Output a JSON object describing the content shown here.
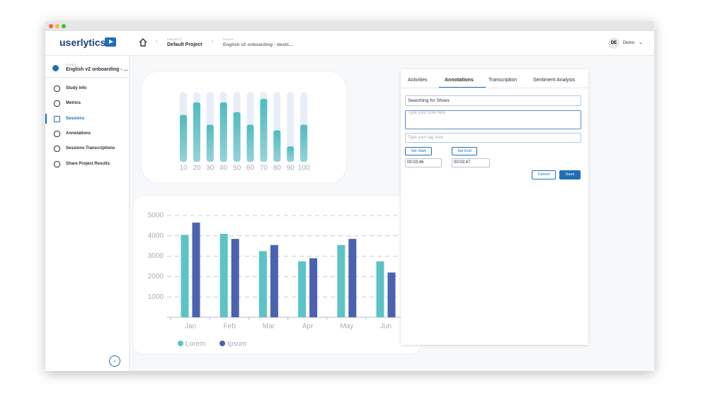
{
  "header": {
    "logo": "userlytics",
    "project_label": "PROJECT",
    "project": "Default Project",
    "study_label": "STUDY",
    "study": "English v2 onboarding - deskt...",
    "avatar": "DE",
    "user": "Demo"
  },
  "sidebar": {
    "study_label": "STUDY",
    "study": "English v2 onboarding - ...",
    "items": [
      "Study Info",
      "Metrics",
      "Sessions",
      "Annotations",
      "Sessions Transcriptions",
      "Share Project Results"
    ],
    "active": 2
  },
  "annotation_panel": {
    "tabs": [
      "Activities",
      "Annotations",
      "Transcription",
      "Sentiment Analysis"
    ],
    "active_tab": 1,
    "title": "Searching for Shoes",
    "note_placeholder": "Type your note here",
    "tag_placeholder": "Type your tag here",
    "set_start": "Set Start",
    "set_end": "Set End",
    "start_time": "00:03:46",
    "end_time": "00:03:47",
    "cancel": "Cancel",
    "save": "Save"
  },
  "chart_data": [
    {
      "type": "bar",
      "categories": [
        "10",
        "20",
        "30",
        "40",
        "50",
        "60",
        "70",
        "80",
        "90",
        "100"
      ],
      "values": [
        67,
        85,
        53,
        85,
        71,
        53,
        90,
        45,
        22,
        53
      ],
      "color": "#4fbcbf",
      "track_color": "#e8eef8",
      "ylim": [
        0,
        100
      ]
    },
    {
      "type": "grouped-bar",
      "categories": [
        "Jan",
        "Feb",
        "Mar",
        "Apr",
        "May",
        "Jun"
      ],
      "series": [
        {
          "name": "Lorem",
          "color": "#5cc3c6",
          "values": [
            4050,
            4100,
            3250,
            2750,
            3550,
            2750
          ]
        },
        {
          "name": "Ipsum",
          "color": "#4b62b1",
          "values": [
            4650,
            3850,
            3550,
            2900,
            3850,
            2200
          ]
        }
      ],
      "ylim": [
        0,
        5000
      ],
      "yticks": [
        1000,
        2000,
        3000,
        4000,
        5000
      ],
      "grid": true
    }
  ]
}
